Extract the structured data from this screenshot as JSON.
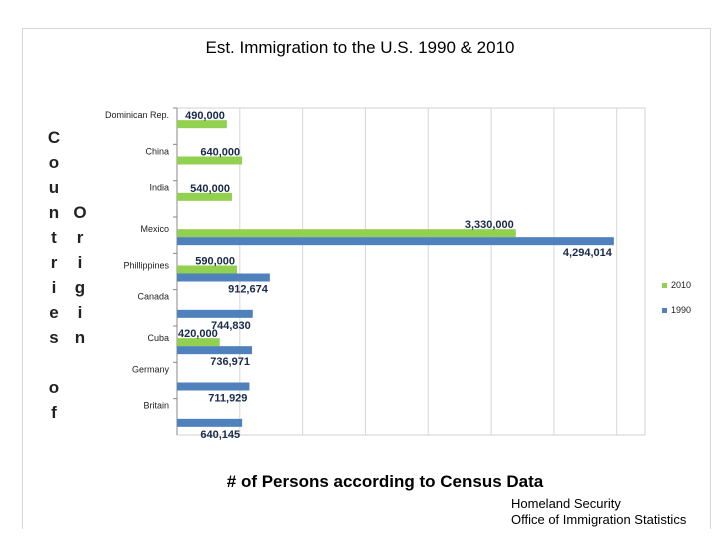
{
  "chart_data": {
    "type": "bar",
    "orientation": "horizontal",
    "title": "Est. Immigration to the U.S. 1990 & 2010",
    "xlabel": "# of Persons according to Census Data",
    "ylabel_primary": [
      "C",
      "o",
      "u",
      "n",
      "t",
      "r",
      "i",
      "e",
      "s",
      "",
      "o",
      "f"
    ],
    "ylabel_secondary": [
      "O",
      "r",
      "i",
      "g",
      "i",
      "n"
    ],
    "categories": [
      "Dominican Rep.",
      "China",
      "India",
      "Mexico",
      "Phillippines",
      "Canada",
      "Cuba",
      "Germany",
      "Britain"
    ],
    "series": [
      {
        "name": "2010",
        "color": "#92d050",
        "values": [
          490000,
          640000,
          540000,
          3330000,
          590000,
          null,
          420000,
          null,
          null
        ],
        "labels": [
          "490,000",
          "640,000",
          "540,000",
          "3,330,000",
          "590,000",
          "",
          "420,000",
          "",
          ""
        ]
      },
      {
        "name": "1990",
        "color": "#4f81bd",
        "values": [
          null,
          null,
          null,
          4294014,
          912674,
          744830,
          736971,
          711929,
          640145
        ],
        "labels": [
          "",
          "",
          "",
          "4,294,014",
          "912,674",
          "744,830",
          "736,971",
          "711,929",
          "640,145"
        ]
      }
    ],
    "grid": true,
    "legend_position": "right"
  },
  "source": [
    "Homeland Security",
    "Office of Immigration Statistics"
  ]
}
